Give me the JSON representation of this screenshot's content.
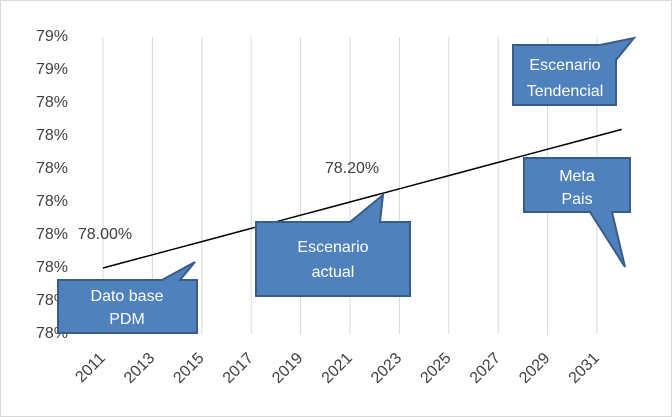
{
  "chart_data": {
    "type": "line",
    "categories": [
      "2011",
      null,
      "2013",
      null,
      "2015",
      null,
      "2017",
      null,
      "2019",
      null,
      "2021",
      null,
      "2023",
      null,
      "2025",
      null,
      "2027",
      null,
      "2029",
      null,
      "2031",
      null
    ],
    "series": [
      {
        "color": "#000000",
        "values": [
          78.0,
          78.02,
          78.04,
          78.06,
          78.08,
          78.1,
          78.12,
          78.14,
          78.16,
          78.18,
          78.2,
          78.22,
          78.24,
          78.26,
          78.28,
          78.3,
          78.32,
          78.34,
          78.36,
          78.38,
          78.4,
          78.42
        ],
        "value_labels": [
          "78.00%",
          null,
          null,
          null,
          null,
          null,
          null,
          null,
          null,
          null,
          "78.20%",
          null,
          null,
          null,
          null,
          null,
          null,
          null,
          null,
          null,
          null,
          null
        ]
      }
    ],
    "ylim": [
      77.8,
      78.7
    ],
    "yticks": [
      {
        "value": 77.8,
        "label": "78%"
      },
      {
        "value": 77.9,
        "label": "78%"
      },
      {
        "value": 78.0,
        "label": "78%"
      },
      {
        "value": 78.1,
        "label": "78%"
      },
      {
        "value": 78.2,
        "label": "78%"
      },
      {
        "value": 78.3,
        "label": "78%"
      },
      {
        "value": 78.4,
        "label": "78%"
      },
      {
        "value": 78.5,
        "label": "78%"
      },
      {
        "value": 78.6,
        "label": "79%"
      },
      {
        "value": 78.7,
        "label": "79%"
      }
    ],
    "grid": true,
    "annotations": [
      [
        "Dato base",
        "PDM"
      ],
      [
        "Escenario",
        "actual"
      ],
      [
        "Meta",
        "Pais"
      ],
      [
        "Escenario",
        "Tendencial"
      ]
    ]
  }
}
